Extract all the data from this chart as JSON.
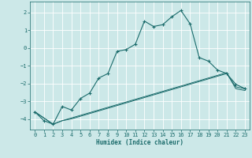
{
  "xlabel": "Humidex (Indice chaleur)",
  "bg_color": "#cce8e8",
  "grid_color": "#ffffff",
  "line_color": "#1a6b6b",
  "xlim": [
    -0.5,
    23.5
  ],
  "ylim": [
    -4.6,
    2.6
  ],
  "yticks": [
    -4,
    -3,
    -2,
    -1,
    0,
    1,
    2
  ],
  "xticks": [
    0,
    1,
    2,
    3,
    4,
    5,
    6,
    7,
    8,
    9,
    10,
    11,
    12,
    13,
    14,
    15,
    16,
    17,
    18,
    19,
    20,
    21,
    22,
    23
  ],
  "line1_x": [
    0,
    2,
    3,
    4,
    5,
    6,
    7,
    8,
    9,
    10,
    11,
    12,
    13,
    14,
    15,
    16,
    17,
    18,
    19,
    20,
    21,
    22,
    23
  ],
  "line1_y": [
    -3.6,
    -4.3,
    -4.1,
    -4.0,
    -3.85,
    -3.7,
    -3.55,
    -3.4,
    -3.25,
    -3.1,
    -2.95,
    -2.8,
    -2.65,
    -2.5,
    -2.35,
    -2.2,
    -2.05,
    -1.9,
    -1.75,
    -1.6,
    -1.45,
    -2.2,
    -2.3
  ],
  "line2_x": [
    0,
    2,
    3,
    4,
    5,
    6,
    7,
    8,
    9,
    10,
    11,
    12,
    13,
    14,
    15,
    16,
    17,
    18,
    19,
    20,
    21,
    22,
    23
  ],
  "line2_y": [
    -3.6,
    -4.3,
    -4.1,
    -3.95,
    -3.8,
    -3.65,
    -3.5,
    -3.35,
    -3.2,
    -3.05,
    -2.9,
    -2.75,
    -2.6,
    -2.45,
    -2.3,
    -2.15,
    -2.0,
    -1.85,
    -1.7,
    -1.55,
    -1.4,
    -2.3,
    -2.4
  ],
  "line3_x": [
    0,
    1,
    2,
    3,
    4,
    5,
    6,
    7,
    8,
    9,
    10,
    11,
    12,
    13,
    14,
    15,
    16,
    17,
    18,
    19,
    20,
    21,
    22,
    23
  ],
  "line3_y": [
    -3.6,
    -4.1,
    -4.3,
    -3.3,
    -3.5,
    -2.85,
    -2.55,
    -1.7,
    -1.45,
    -0.2,
    -0.1,
    0.2,
    1.5,
    1.2,
    1.3,
    1.75,
    2.1,
    1.35,
    -0.55,
    -0.75,
    -1.25,
    -1.45,
    -2.05,
    -2.3
  ]
}
